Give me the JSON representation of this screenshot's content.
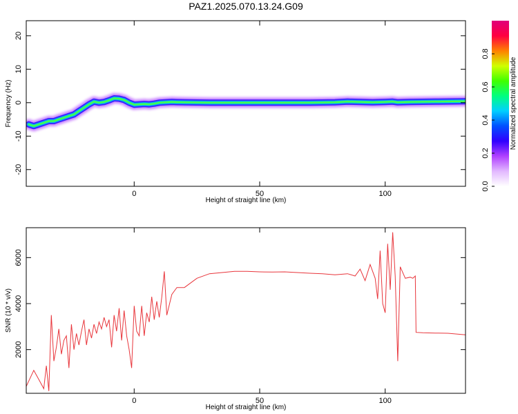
{
  "title": "PAZ1.2025.070.13.24.G09",
  "chart_data": [
    {
      "type": "heatmap",
      "xlabel": "Height of straight line (km)",
      "ylabel": "Frequency (Hz)",
      "xlim": [
        -43,
        132
      ],
      "ylim": [
        -25,
        24.5
      ],
      "xticks": [
        0,
        50,
        100
      ],
      "yticks": [
        -20,
        -10,
        0,
        10,
        20
      ],
      "colorbar": {
        "label": "Normalized spectral amplitude",
        "range": [
          0,
          1
        ],
        "ticks": [
          0.0,
          0.2,
          0.4,
          0.6,
          0.8
        ],
        "colormap": [
          "#ffffff",
          "#e2b8ff",
          "#b040ff",
          "#3000ff",
          "#0050ff",
          "#00d0ff",
          "#00ff80",
          "#40ff00",
          "#d0ff00",
          "#ff8000",
          "#ff0040",
          "#e0007a"
        ]
      },
      "ridge": {
        "x": [
          -42,
          -40,
          -38,
          -36,
          -34,
          -32,
          -30,
          -28,
          -26,
          -24,
          -22,
          -20,
          -18,
          -16,
          -14,
          -12,
          -10,
          -8,
          -6,
          -4,
          -2,
          0,
          2,
          4,
          6,
          8,
          10,
          15,
          20,
          30,
          40,
          50,
          60,
          70,
          80,
          85,
          90,
          95,
          100,
          103,
          105,
          110,
          120,
          132
        ],
        "y": [
          -6.5,
          -7.0,
          -6.5,
          -6.0,
          -5.5,
          -5.5,
          -5.0,
          -4.5,
          -4.0,
          -3.5,
          -2.5,
          -1.5,
          -0.5,
          0.3,
          0.0,
          0.2,
          0.7,
          1.3,
          1.2,
          0.8,
          0.0,
          -0.6,
          -0.5,
          -0.4,
          -0.5,
          -0.3,
          0.0,
          0.2,
          0.1,
          0.0,
          0.0,
          0.0,
          0.0,
          0.0,
          0.1,
          0.3,
          0.2,
          0.1,
          0.2,
          0.3,
          0.1,
          0.2,
          0.3,
          0.4
        ]
      }
    },
    {
      "type": "line",
      "xlabel": "Height of straight line (km)",
      "ylabel": "SNR (10 * v/v)",
      "xlim": [
        -43,
        132
      ],
      "ylim": [
        100,
        7300
      ],
      "xticks": [
        0,
        50,
        100
      ],
      "yticks": [
        2000,
        4000,
        6000
      ],
      "series": [
        {
          "color": "#e8343a",
          "x": [
            -43,
            -40,
            -38,
            -36,
            -35,
            -34,
            -33,
            -32,
            -31,
            -30,
            -29,
            -28,
            -27,
            -26,
            -25,
            -24,
            -23,
            -22,
            -21,
            -20,
            -19,
            -18,
            -17,
            -16,
            -15,
            -14,
            -13,
            -12,
            -11,
            -10,
            -9,
            -8,
            -7,
            -6,
            -5,
            -4,
            -3,
            -2,
            -1,
            0,
            1,
            2,
            3,
            4,
            5,
            6,
            7,
            8,
            9,
            10,
            11,
            12,
            13,
            15,
            17,
            20,
            25,
            30,
            35,
            40,
            45,
            50,
            55,
            60,
            65,
            70,
            75,
            80,
            85,
            88,
            90,
            92,
            94,
            96,
            97,
            98,
            99,
            100,
            101,
            102,
            103,
            104,
            105,
            106,
            108,
            110,
            111,
            112,
            112.3,
            115,
            120,
            125,
            132
          ],
          "y": [
            400,
            1100,
            700,
            300,
            1300,
            200,
            3500,
            1500,
            2100,
            2900,
            1800,
            2400,
            2600,
            1200,
            3100,
            2000,
            2700,
            2200,
            2800,
            3300,
            2200,
            2900,
            2500,
            3100,
            2700,
            3200,
            2900,
            3400,
            3000,
            3300,
            2100,
            3500,
            2800,
            3800,
            2400,
            3700,
            2600,
            2000,
            1200,
            3900,
            2800,
            2600,
            3900,
            2600,
            3600,
            3200,
            4300,
            3300,
            4100,
            3400,
            4300,
            5400,
            3500,
            4400,
            4700,
            4700,
            5100,
            5300,
            5350,
            5400,
            5400,
            5380,
            5370,
            5380,
            5350,
            5320,
            5300,
            5250,
            5300,
            5200,
            5500,
            5000,
            5700,
            5100,
            4200,
            6300,
            4000,
            3600,
            6600,
            4600,
            7100,
            5200,
            1500,
            5600,
            5100,
            5150,
            5100,
            5200,
            2750,
            2730,
            2720,
            2710,
            2640
          ]
        }
      ]
    }
  ]
}
